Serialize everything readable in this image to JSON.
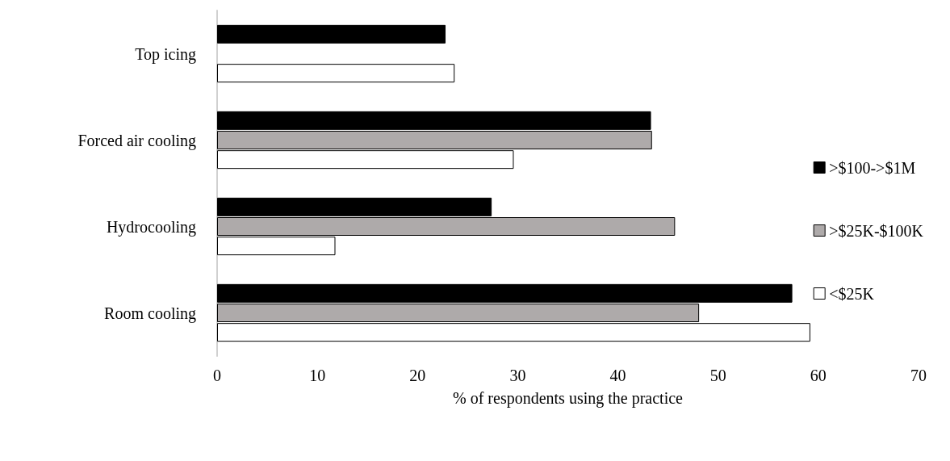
{
  "chart_data": {
    "type": "bar",
    "orientation": "horizontal",
    "xlabel": "% of respondents using the practice",
    "categories": [
      "Top icing",
      "Forced air cooling",
      "Hydrocooling",
      "Room cooling"
    ],
    "series": [
      {
        "name": ">$100->$1M",
        "color": "#000000",
        "values": [
          22.8,
          43.3,
          27.4,
          57.4
        ]
      },
      {
        "name": ">$25K-$100K",
        "color": "#aeaaaa",
        "values": [
          null,
          43.4,
          45.7,
          48.1
        ]
      },
      {
        "name": "<$25K",
        "color": "#ffffff",
        "values": [
          23.7,
          29.6,
          11.8,
          59.2
        ]
      }
    ],
    "xlim": [
      0,
      70
    ],
    "xticks": [
      0,
      10,
      20,
      30,
      40,
      50,
      60,
      70
    ],
    "grid": false,
    "legend": "right"
  }
}
